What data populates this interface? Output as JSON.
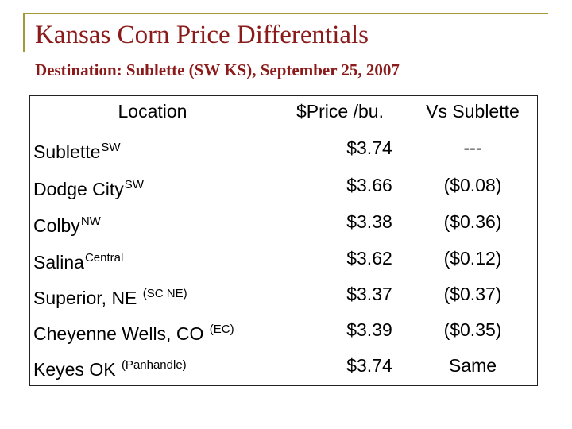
{
  "header": {
    "title": "Kansas Corn Price Differentials",
    "subtitle": "Destination: Sublette (SW KS), September 25, 2007"
  },
  "table": {
    "columns": [
      "Location",
      "$Price /bu.",
      "Vs Sublette"
    ],
    "rows": [
      {
        "location": "Sublette",
        "note": "SW",
        "price": "$3.74",
        "vs": "---"
      },
      {
        "location": "Dodge City",
        "note": "SW",
        "price": "$3.66",
        "vs": "($0.08)"
      },
      {
        "location": "Colby",
        "note": "NW",
        "price": "$3.38",
        "vs": "($0.36)"
      },
      {
        "location": "Salina",
        "note": "Central",
        "price": "$3.62",
        "vs": "($0.12)"
      },
      {
        "location": "Superior, NE ",
        "note": "(SC NE)",
        "price": "$3.37",
        "vs": "($0.37)"
      },
      {
        "location": "Cheyenne Wells, CO ",
        "note": "(EC)",
        "price": "$3.39",
        "vs": "($0.35)"
      },
      {
        "location": "Keyes OK ",
        "note": "(Panhandle)",
        "price": "$3.74",
        "vs": "Same"
      }
    ]
  }
}
